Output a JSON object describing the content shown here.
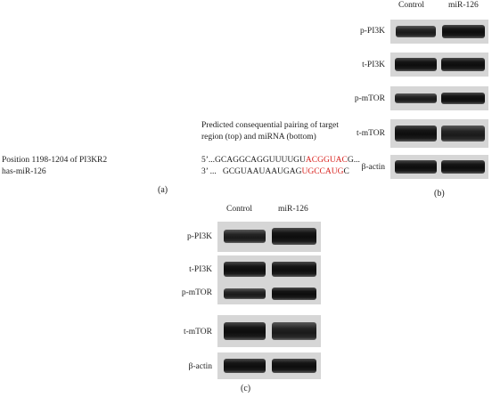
{
  "panel_a": {
    "caption_line1": "Predicted consequential pairing of target",
    "caption_line2": "region (top) and miRNA (bottom)",
    "target_label": "Position 1198-1204 of PI3KR2",
    "mirna_label": "has-miR-126",
    "target_seq_prefix": "5’...GCAGGCAGGUUUUGU",
    "target_seq_seed": "ACGGUAC",
    "target_seq_suffix": "G...",
    "mirna_seq_prefix": "3’ ...   GCGUAAUAAUGAG",
    "mirna_seq_seed": "UGCCAUG",
    "mirna_seq_suffix": "C",
    "letter": "(a)"
  },
  "panel_b": {
    "col_control": "Control",
    "col_mir": "miR-126",
    "rows": [
      "p-PI3K",
      "t-PI3K",
      "p-mTOR",
      "t-mTOR",
      "β-actin"
    ],
    "letter": "(b)"
  },
  "panel_c": {
    "col_control": "Control",
    "col_mir": "miR-126",
    "rows": [
      "p-PI3K",
      "t-PI3K",
      "p-mTOR",
      "t-mTOR",
      "β-actin"
    ],
    "letter": "(c)"
  },
  "colors": {
    "seed_highlight": "#d9231f",
    "band": "#111111",
    "blot_background": "#d6d6d6"
  }
}
